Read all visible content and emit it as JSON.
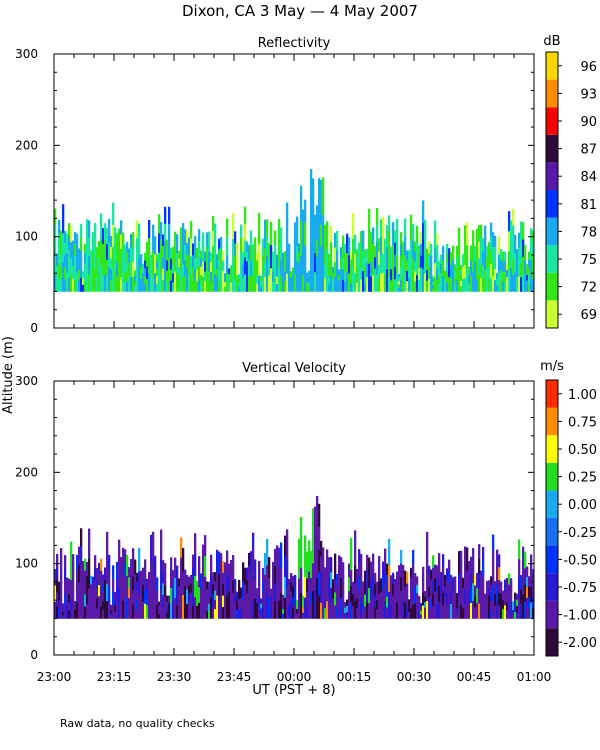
{
  "title": "Dixon, CA  3 May —  4 May 2007",
  "footnote": "Raw data, no quality checks",
  "xlabel": "UT  (PST + 8)",
  "ylabel": "Altitude (m)",
  "chart_data": [
    {
      "type": "heatmap",
      "title": "Reflectivity",
      "xlabel": "UT  (PST + 8)",
      "ylabel": "Altitude (m)",
      "x_range": [
        "23:00",
        "01:00"
      ],
      "x_ticks": [
        "23:00",
        "23:15",
        "23:30",
        "23:45",
        "00:00",
        "00:15",
        "00:30",
        "00:45",
        "01:00"
      ],
      "ylim": [
        0,
        300
      ],
      "y_ticks": [
        0,
        100,
        200,
        300
      ],
      "colorbar": {
        "unit": "dB",
        "labels": [
          "69",
          "72",
          "75",
          "78",
          "81",
          "84",
          "87",
          "90",
          "93",
          "96"
        ],
        "colors": [
          "#ccff33",
          "#33e61a",
          "#1ae6a0",
          "#1aaaf0",
          "#0033ff",
          "#5a1aa8",
          "#2e0a3c",
          "#ff0000",
          "#ff8c00",
          "#ffd700"
        ]
      },
      "observations": {
        "echo_base_m": 40,
        "typical_top_m": [
          80,
          120
        ],
        "max_top_m": 180,
        "max_top_time": "00:05"
      }
    },
    {
      "type": "heatmap",
      "title": "Vertical Velocity",
      "xlabel": "UT  (PST + 8)",
      "ylabel": "Altitude (m)",
      "x_range": [
        "23:00",
        "01:00"
      ],
      "x_ticks": [
        "23:00",
        "23:15",
        "23:30",
        "23:45",
        "00:00",
        "00:15",
        "00:30",
        "00:45",
        "01:00"
      ],
      "ylim": [
        0,
        300
      ],
      "y_ticks": [
        0,
        100,
        200,
        300
      ],
      "colorbar": {
        "unit": "m/s",
        "labels": [
          "-2.00",
          "-1.00",
          "-0.75",
          "-0.50",
          "-0.25",
          "0.00",
          "0.25",
          "0.50",
          "0.75",
          "1.00"
        ],
        "colors": [
          "#2e0a3c",
          "#5a1aa8",
          "#2a1ad8",
          "#0033ff",
          "#1a6ef0",
          "#1aaaf0",
          "#22dd22",
          "#ffff00",
          "#ff8c00",
          "#ff2a00"
        ]
      },
      "observations": {
        "echo_base_m": 40,
        "typical_top_m": [
          80,
          120
        ],
        "max_top_m": 180,
        "dominant_range_m_s": [
          -1.0,
          -0.75
        ]
      }
    }
  ]
}
